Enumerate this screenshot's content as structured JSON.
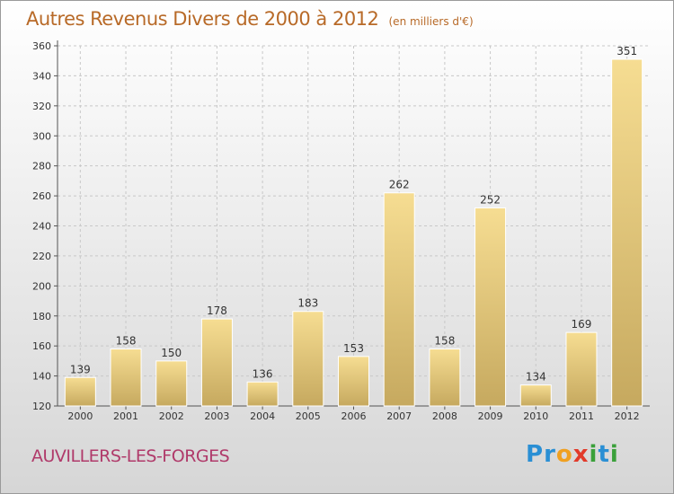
{
  "title": "Autres Revenus Divers de 2000 à 2012",
  "subtitle": "(en milliers d'€)",
  "location": "AUVILLERS-LES-FORGES",
  "brand": {
    "name": "Proxiti",
    "letters": [
      {
        "ch": "P",
        "color": "#2a8fd4"
      },
      {
        "ch": "r",
        "color": "#2a8fd4"
      },
      {
        "ch": "o",
        "color": "#f0a020"
      },
      {
        "ch": "x",
        "color": "#e23a2a"
      },
      {
        "ch": "i",
        "color": "#3aa03a"
      },
      {
        "ch": "t",
        "color": "#2a8fd4"
      },
      {
        "ch": "i",
        "color": "#3aa03a"
      }
    ]
  },
  "chart_data": {
    "type": "bar",
    "title": "Autres Revenus Divers de 2000 à 2012",
    "subtitle": "(en milliers d'€)",
    "categories": [
      "2000",
      "2001",
      "2002",
      "2003",
      "2004",
      "2005",
      "2006",
      "2007",
      "2008",
      "2009",
      "2010",
      "2011",
      "2012"
    ],
    "values": [
      139,
      158,
      150,
      178,
      136,
      183,
      153,
      262,
      158,
      252,
      134,
      169,
      351
    ],
    "ylim": [
      120,
      360
    ],
    "yticks": [
      120,
      140,
      160,
      180,
      200,
      220,
      240,
      260,
      280,
      300,
      320,
      340,
      360
    ],
    "grid": true,
    "bar_color": "#e8c873"
  }
}
